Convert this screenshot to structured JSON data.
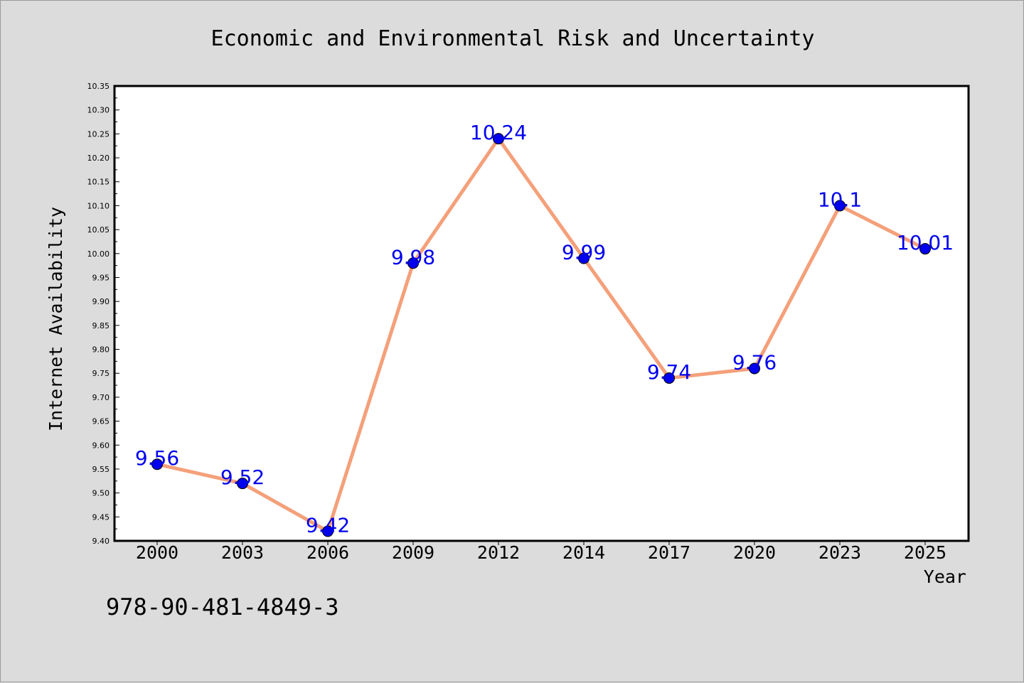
{
  "chart_data": {
    "type": "line",
    "title": "Economic and Environmental Risk and Uncertainty",
    "xlabel": "Year",
    "ylabel": "Internet Availability",
    "categories": [
      "2000",
      "2003",
      "2006",
      "2009",
      "2012",
      "2014",
      "2017",
      "2020",
      "2023",
      "2025"
    ],
    "series": [
      {
        "values": [
          9.56,
          9.52,
          9.42,
          9.98,
          10.24,
          9.99,
          9.74,
          9.76,
          10.1,
          10.01
        ],
        "labels": [
          "9.56",
          "9.52",
          "9.42",
          "9.98",
          "10.24",
          "9.99",
          "9.74",
          "9.76",
          "10.1",
          "10.01"
        ],
        "line_color": "#f4a07a",
        "marker_color": "#0000ee",
        "label_color": "#0000ee"
      }
    ],
    "ylim": [
      9.4,
      10.35
    ],
    "y_ticks": [
      "9.40",
      "9.45",
      "9.50",
      "9.55",
      "9.60",
      "9.65",
      "9.70",
      "9.75",
      "9.80",
      "9.85",
      "9.90",
      "9.95",
      "10.00",
      "10.05",
      "10.10",
      "10.15",
      "10.20",
      "10.25",
      "10.30",
      "10.35"
    ],
    "grid": false,
    "legend": "none"
  },
  "footer_text": "978-90-481-4849-3",
  "colors": {
    "background": "#dcdcdc",
    "plot_background": "#ffffff",
    "axis": "#000000"
  }
}
